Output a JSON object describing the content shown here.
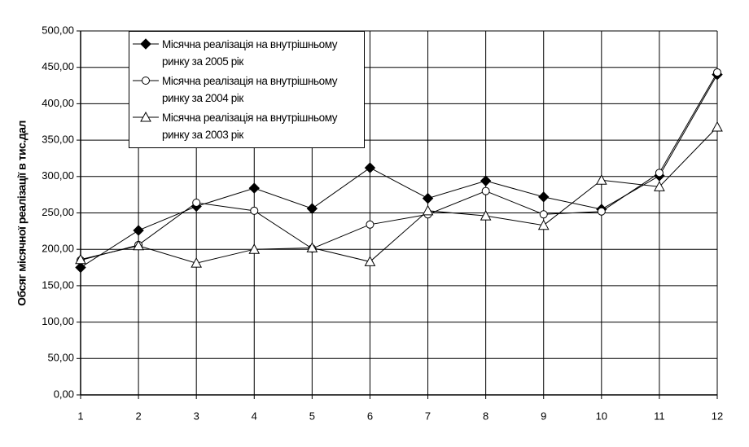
{
  "chart_data": {
    "type": "line",
    "y_label": "Обсяг місячної реалізації в тис.дал",
    "x": [
      1,
      2,
      3,
      4,
      5,
      6,
      7,
      8,
      9,
      10,
      11,
      12
    ],
    "xlim": [
      1,
      12
    ],
    "xticks": [
      1,
      2,
      3,
      4,
      5,
      6,
      7,
      8,
      9,
      10,
      11,
      12
    ],
    "ylim": [
      0,
      500
    ],
    "yticks": [
      {
        "value": 0,
        "label": "0,00"
      },
      {
        "value": 50,
        "label": "50,00"
      },
      {
        "value": 100,
        "label": "100,00"
      },
      {
        "value": 150,
        "label": "150,00"
      },
      {
        "value": 200,
        "label": "200,00"
      },
      {
        "value": 250,
        "label": "250,00"
      },
      {
        "value": 300,
        "label": "300,00"
      },
      {
        "value": 350,
        "label": "350,00"
      },
      {
        "value": 400,
        "label": "400,00"
      },
      {
        "value": 450,
        "label": "450,00"
      },
      {
        "value": 500,
        "label": "500,00"
      }
    ],
    "grid": true,
    "legend": "top-left",
    "series": [
      {
        "name": "Місячна реалізація на внутрішньому ринку за 2005 рік",
        "color": "#000000",
        "marker": "diamond",
        "values": [
          175,
          226,
          259,
          284,
          256,
          312,
          270,
          294,
          272,
          255,
          301,
          440
        ]
      },
      {
        "name": "Місячна реалізація на внутрішньому ринку за 2004 рік",
        "color": "#000000",
        "marker": "circle",
        "values": [
          185,
          206,
          264,
          253,
          201,
          234,
          248,
          280,
          248,
          252,
          305,
          443
        ]
      },
      {
        "name": "Місячна реалізація на внутрішньому ринку за 2003 рік",
        "color": "#000000",
        "marker": "triangle",
        "values": [
          186,
          205,
          181,
          200,
          202,
          183,
          253,
          246,
          233,
          295,
          286,
          368
        ]
      }
    ]
  }
}
